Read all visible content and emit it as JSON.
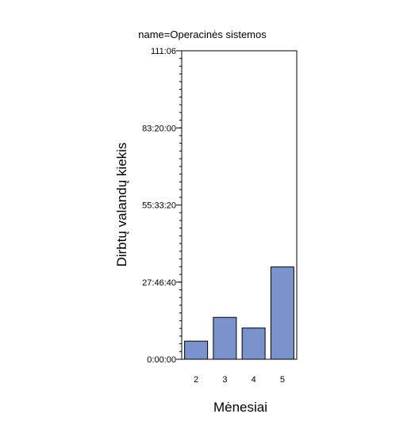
{
  "chart_data": {
    "type": "bar",
    "title": "name=Operacinės sistemos",
    "xlabel": "Mėnesiai",
    "ylabel": "Dirbtų valandų kiekis",
    "categories": [
      "2",
      "3",
      "4",
      "5"
    ],
    "values_seconds": [
      23500,
      54300,
      40500,
      119700
    ],
    "ylim_seconds": [
      0,
      400000
    ],
    "y_ticks": [
      {
        "label": "0:00:00",
        "seconds": 0
      },
      {
        "label": "27:46:40",
        "seconds": 100000
      },
      {
        "label": "55:33:20",
        "seconds": 200000
      },
      {
        "label": "83:20:00",
        "seconds": 300000
      },
      {
        "label": "111:06",
        "seconds": 400000
      }
    ],
    "grid": false,
    "bar_color": "#7b93cc",
    "bar_edge_color": "#000000"
  }
}
